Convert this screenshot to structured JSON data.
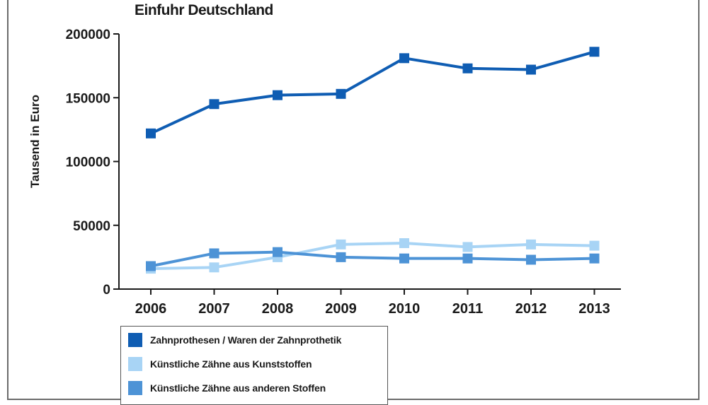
{
  "title": "Einfuhr Deutschland",
  "colors": {
    "axis": "#1a1a1a",
    "text": "#1a1a1a"
  },
  "chart_data": {
    "type": "line",
    "title": "Einfuhr Deutschland",
    "xlabel": "",
    "ylabel": "Tausend in Euro",
    "categories": [
      "2006",
      "2007",
      "2008",
      "2009",
      "2010",
      "2011",
      "2012",
      "2013"
    ],
    "ylim": [
      0,
      200000
    ],
    "yticks": [
      "0",
      "50000",
      "100000",
      "150000",
      "200000"
    ],
    "yticks_values": [
      0,
      50000,
      100000,
      150000,
      200000
    ],
    "grid": false,
    "legend_position": "bottom-left",
    "series": [
      {
        "name": "Zahnprothesen / Waren der Zahnprothetik",
        "color": "#0f5db3",
        "values": [
          122000,
          145000,
          152000,
          153000,
          181000,
          173000,
          172000,
          186000
        ]
      },
      {
        "name": "Künstliche Zähne aus Kunststoffen",
        "color": "#a8d4f5",
        "values": [
          16000,
          17000,
          25000,
          35000,
          36000,
          33000,
          35000,
          34000
        ]
      },
      {
        "name": "Künstliche Zähne aus anderen Stoffen",
        "color": "#4d93d6",
        "values": [
          18000,
          28000,
          29000,
          25000,
          24000,
          24000,
          23000,
          24000
        ]
      }
    ]
  }
}
